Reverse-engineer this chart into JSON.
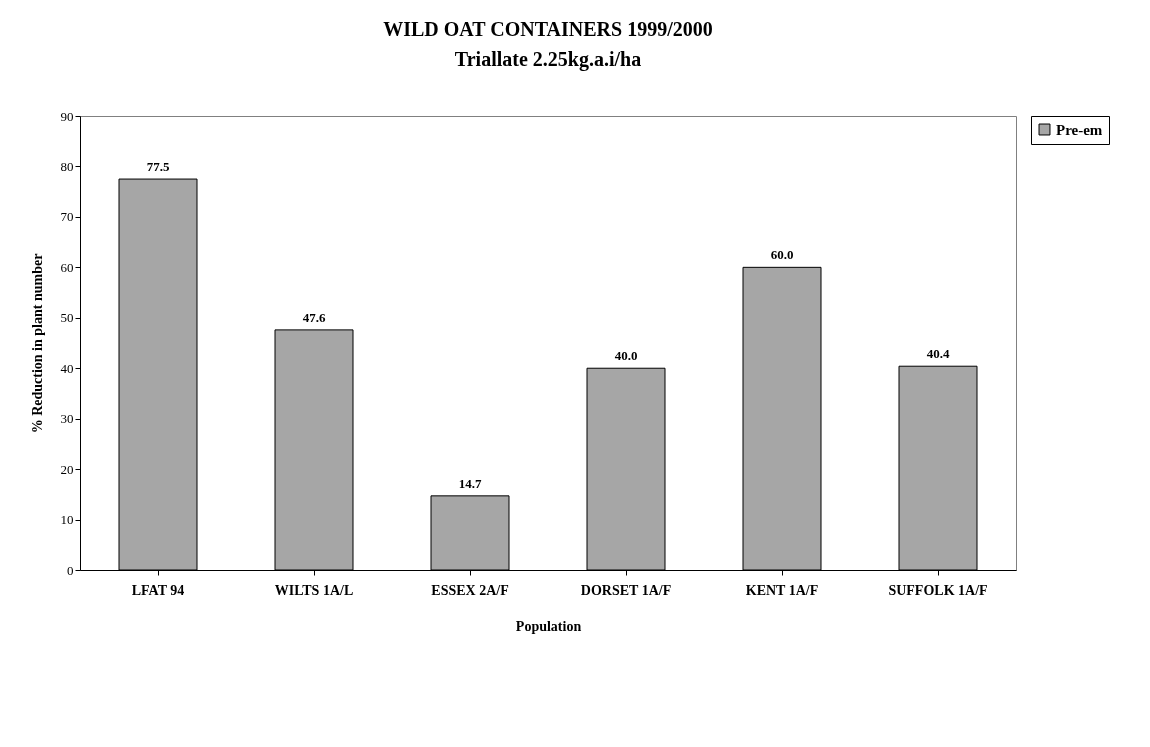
{
  "chart_data": {
    "type": "bar",
    "title": "WILD OAT CONTAINERS 1999/2000",
    "subtitle": "Triallate 2.25kg.a.i/ha",
    "xlabel": "Population",
    "ylabel": "% Reduction in plant number",
    "categories": [
      "LFAT 94",
      "WILTS 1A/L",
      "ESSEX 2A/F",
      "DORSET 1A/F",
      "KENT 1A/F",
      "SUFFOLK 1A/F"
    ],
    "series": [
      {
        "name": "Pre-em",
        "color": "#a6a6a6",
        "values": [
          77.5,
          47.6,
          14.7,
          40.0,
          60.0,
          40.4
        ],
        "value_labels": [
          "77.5",
          "47.6",
          "14.7",
          "40.0",
          "60.0",
          "40.4"
        ]
      }
    ],
    "ylim": [
      0,
      90
    ],
    "yticks": [
      0,
      10,
      20,
      30,
      40,
      50,
      60,
      70,
      80,
      90
    ],
    "grid": false,
    "legend": "right"
  }
}
